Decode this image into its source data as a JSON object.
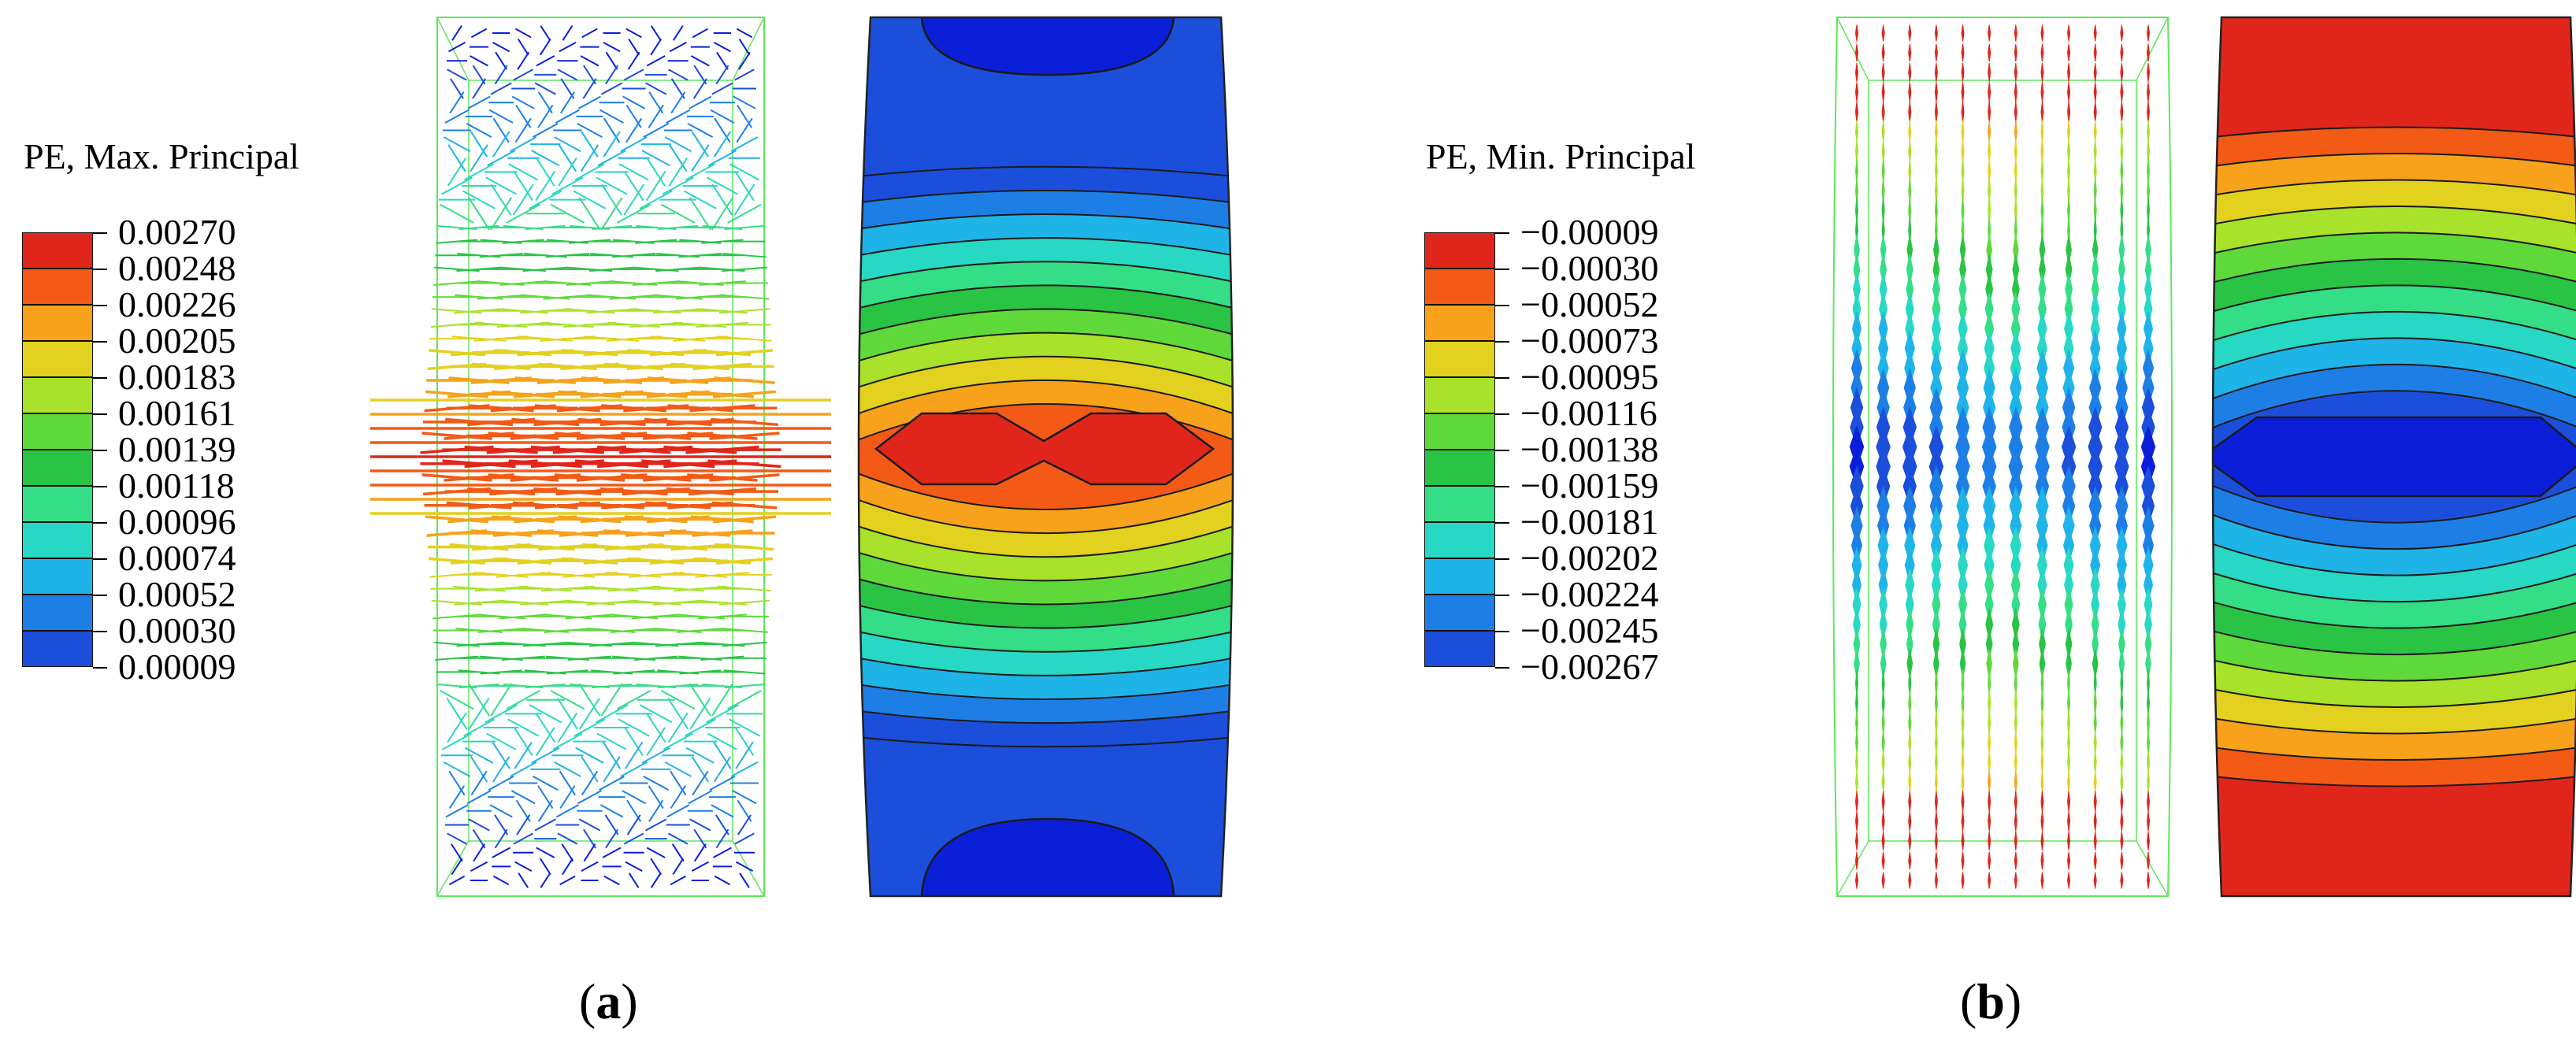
{
  "panels": [
    {
      "legend_title": "PE, Max. Principal",
      "legend_values": [
        "0.00270",
        "0.00248",
        "0.00226",
        "0.00205",
        "0.00183",
        "0.00161",
        "0.00139",
        "0.00118",
        "0.00096",
        "0.00074",
        "0.00052",
        "0.00030",
        "0.00009"
      ],
      "caption_letter": "a"
    },
    {
      "legend_title": "PE, Min. Principal",
      "legend_values": [
        "−0.00009",
        "−0.00030",
        "−0.00052",
        "−0.00073",
        "−0.00095",
        "−0.00116",
        "−0.00138",
        "−0.00159",
        "−0.00181",
        "−0.00202",
        "−0.00224",
        "−0.00245",
        "−0.00267"
      ],
      "caption_letter": "b"
    }
  ],
  "colors": {
    "scale": [
      "#e0261b",
      "#f25a16",
      "#f7a21a",
      "#e3d11f",
      "#a8e22a",
      "#5fd93a",
      "#29c444",
      "#33de86",
      "#27d8c4",
      "#1fb4e8",
      "#1d7fe6",
      "#1b4fdb",
      "#0b1fd8"
    ],
    "mesh": "#5de85a",
    "contour_line": "#1a1a1a"
  }
}
